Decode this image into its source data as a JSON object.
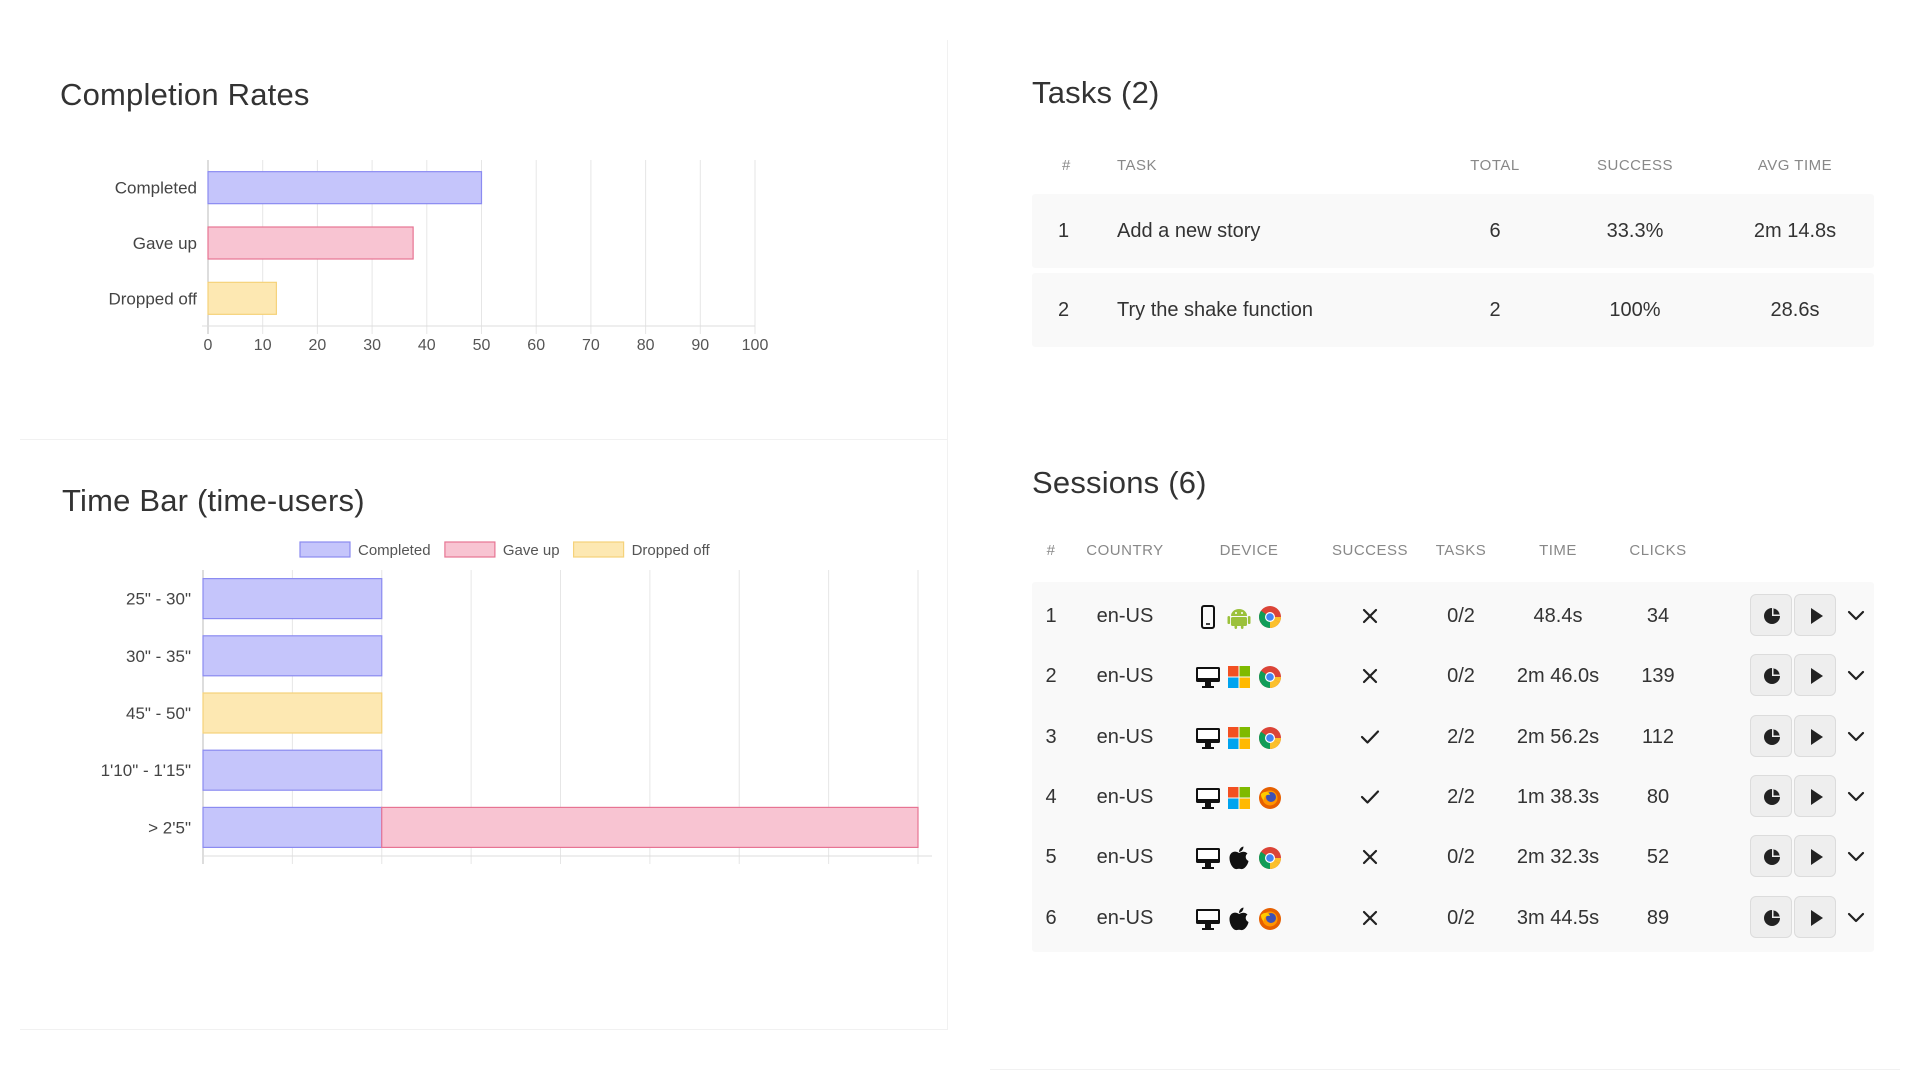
{
  "completion": {
    "title": "Completion Rates",
    "chart_data": {
      "type": "bar",
      "orientation": "horizontal",
      "categories": [
        "Completed",
        "Gave up",
        "Dropped off"
      ],
      "values": [
        50,
        37.5,
        12.5
      ],
      "colors": [
        "#c5c5fb",
        "#f8c4d2",
        "#fde8b2"
      ],
      "borders": [
        "#8b8bf1",
        "#e77493",
        "#f5d27a"
      ],
      "xticks": [
        "0",
        "10",
        "20",
        "30",
        "40",
        "50",
        "60",
        "70",
        "80",
        "90",
        "100"
      ],
      "xlim": [
        0,
        100
      ],
      "grid": true
    }
  },
  "timebar": {
    "title": "Time Bar (time-users)",
    "chart_data": {
      "type": "bar",
      "orientation": "horizontal",
      "stacked": true,
      "categories": [
        "25\" - 30\"",
        "30\" - 35\"",
        "45\" - 50\"",
        "1'10\" - 1'15\"",
        "> 2'5\""
      ],
      "series": [
        {
          "name": "Completed",
          "values": [
            1,
            1,
            0,
            1,
            1
          ],
          "color": "#c5c5fb",
          "border": "#8b8bf1"
        },
        {
          "name": "Gave up",
          "values": [
            0,
            0,
            0,
            0,
            3
          ],
          "color": "#f8c4d2",
          "border": "#e77493"
        },
        {
          "name": "Dropped off",
          "values": [
            0,
            0,
            1,
            0,
            0
          ],
          "color": "#fde8b2",
          "border": "#f5d27a"
        }
      ],
      "xlim": [
        0,
        4
      ],
      "legend": "top",
      "grid": true
    }
  },
  "tasks": {
    "title": "Tasks (2)",
    "headers": {
      "num": "#",
      "task": "TASK",
      "total": "TOTAL",
      "success": "SUCCESS",
      "avg": "AVG TIME"
    },
    "rows": [
      {
        "num": "1",
        "task": "Add a new story",
        "total": "6",
        "success": "33.3%",
        "avg": "2m 14.8s"
      },
      {
        "num": "2",
        "task": "Try the shake function",
        "total": "2",
        "success": "100%",
        "avg": "28.6s"
      }
    ]
  },
  "sessions": {
    "title": "Sessions (6)",
    "headers": {
      "num": "#",
      "country": "COUNTRY",
      "device": "DEVICE",
      "success": "SUCCESS",
      "tasks": "TASKS",
      "time": "TIME",
      "clicks": "CLICKS"
    },
    "rows": [
      {
        "num": "1",
        "country": "en-US",
        "device": [
          "phone-icon",
          "android-icon",
          "chrome-icon"
        ],
        "success": "fail",
        "tasks": "0/2",
        "time": "48.4s",
        "clicks": "34"
      },
      {
        "num": "2",
        "country": "en-US",
        "device": [
          "desktop-icon",
          "windows-icon",
          "chrome-icon"
        ],
        "success": "fail",
        "tasks": "0/2",
        "time": "2m 46.0s",
        "clicks": "139"
      },
      {
        "num": "3",
        "country": "en-US",
        "device": [
          "desktop-icon",
          "windows-icon",
          "chrome-icon"
        ],
        "success": "pass",
        "tasks": "2/2",
        "time": "2m 56.2s",
        "clicks": "112"
      },
      {
        "num": "4",
        "country": "en-US",
        "device": [
          "desktop-icon",
          "windows-icon",
          "firefox-icon"
        ],
        "success": "pass",
        "tasks": "2/2",
        "time": "1m 38.3s",
        "clicks": "80"
      },
      {
        "num": "5",
        "country": "en-US",
        "device": [
          "desktop-icon",
          "apple-icon",
          "chrome-icon"
        ],
        "success": "fail",
        "tasks": "0/2",
        "time": "2m 32.3s",
        "clicks": "52"
      },
      {
        "num": "6",
        "country": "en-US",
        "device": [
          "desktop-icon",
          "apple-icon",
          "firefox-icon"
        ],
        "success": "fail",
        "tasks": "0/2",
        "time": "3m 44.5s",
        "clicks": "89"
      }
    ],
    "actions": [
      "pie-chart-icon",
      "play-icon",
      "chevron-down-icon"
    ]
  }
}
